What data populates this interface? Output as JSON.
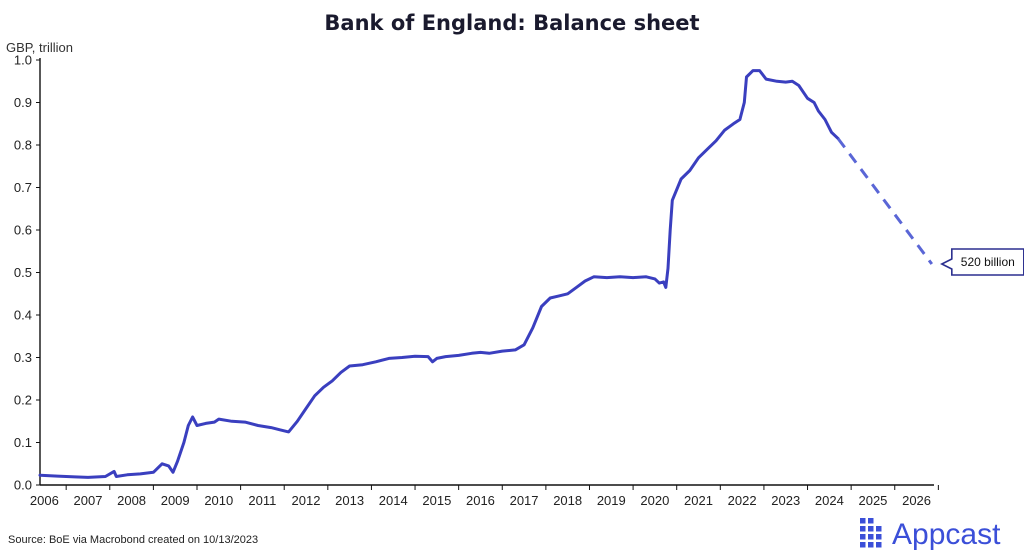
{
  "chart_data": {
    "type": "line",
    "title": "Bank of England: Balance sheet",
    "ylabel": "GBP, trillion",
    "xlabel": "",
    "xlim": [
      2005.9,
      2026.4
    ],
    "ylim": [
      0,
      1.0
    ],
    "yticks": [
      "0.0",
      "0.1",
      "0.2",
      "0.3",
      "0.4",
      "0.5",
      "0.6",
      "0.7",
      "0.8",
      "0.9",
      "1.0"
    ],
    "xticks": [
      "2006",
      "2007",
      "2008",
      "2009",
      "2010",
      "2011",
      "2012",
      "2013",
      "2014",
      "2015",
      "2016",
      "2017",
      "2018",
      "2019",
      "2020",
      "2021",
      "2022",
      "2023",
      "2024",
      "2025",
      "2026"
    ],
    "grid": false,
    "series": [
      {
        "style": "solid",
        "color": "#3a3fbf",
        "points": [
          [
            2005.9,
            0.023
          ],
          [
            2006.3,
            0.021
          ],
          [
            2006.7,
            0.019
          ],
          [
            2007.0,
            0.018
          ],
          [
            2007.4,
            0.02
          ],
          [
            2007.6,
            0.032
          ],
          [
            2007.65,
            0.02
          ],
          [
            2007.9,
            0.024
          ],
          [
            2008.2,
            0.026
          ],
          [
            2008.5,
            0.03
          ],
          [
            2008.7,
            0.05
          ],
          [
            2008.85,
            0.045
          ],
          [
            2008.95,
            0.03
          ],
          [
            2009.05,
            0.055
          ],
          [
            2009.2,
            0.1
          ],
          [
            2009.3,
            0.14
          ],
          [
            2009.4,
            0.16
          ],
          [
            2009.5,
            0.14
          ],
          [
            2009.7,
            0.145
          ],
          [
            2009.9,
            0.148
          ],
          [
            2010.0,
            0.155
          ],
          [
            2010.3,
            0.15
          ],
          [
            2010.6,
            0.148
          ],
          [
            2010.9,
            0.14
          ],
          [
            2011.2,
            0.135
          ],
          [
            2011.4,
            0.13
          ],
          [
            2011.6,
            0.125
          ],
          [
            2011.8,
            0.15
          ],
          [
            2012.0,
            0.18
          ],
          [
            2012.2,
            0.21
          ],
          [
            2012.4,
            0.23
          ],
          [
            2012.6,
            0.245
          ],
          [
            2012.8,
            0.265
          ],
          [
            2013.0,
            0.28
          ],
          [
            2013.3,
            0.283
          ],
          [
            2013.6,
            0.29
          ],
          [
            2013.9,
            0.298
          ],
          [
            2014.2,
            0.3
          ],
          [
            2014.5,
            0.303
          ],
          [
            2014.8,
            0.302
          ],
          [
            2014.9,
            0.29
          ],
          [
            2015.0,
            0.298
          ],
          [
            2015.2,
            0.302
          ],
          [
            2015.5,
            0.305
          ],
          [
            2015.8,
            0.31
          ],
          [
            2016.0,
            0.312
          ],
          [
            2016.2,
            0.31
          ],
          [
            2016.5,
            0.315
          ],
          [
            2016.8,
            0.318
          ],
          [
            2017.0,
            0.33
          ],
          [
            2017.2,
            0.37
          ],
          [
            2017.4,
            0.42
          ],
          [
            2017.6,
            0.44
          ],
          [
            2017.8,
            0.445
          ],
          [
            2018.0,
            0.45
          ],
          [
            2018.2,
            0.465
          ],
          [
            2018.4,
            0.48
          ],
          [
            2018.6,
            0.49
          ],
          [
            2018.9,
            0.488
          ],
          [
            2019.2,
            0.49
          ],
          [
            2019.5,
            0.488
          ],
          [
            2019.8,
            0.49
          ],
          [
            2020.0,
            0.485
          ],
          [
            2020.1,
            0.475
          ],
          [
            2020.2,
            0.478
          ],
          [
            2020.25,
            0.465
          ],
          [
            2020.3,
            0.51
          ],
          [
            2020.35,
            0.6
          ],
          [
            2020.4,
            0.67
          ],
          [
            2020.6,
            0.72
          ],
          [
            2020.8,
            0.74
          ],
          [
            2021.0,
            0.77
          ],
          [
            2021.2,
            0.79
          ],
          [
            2021.4,
            0.81
          ],
          [
            2021.6,
            0.835
          ],
          [
            2021.8,
            0.85
          ],
          [
            2021.95,
            0.86
          ],
          [
            2022.05,
            0.9
          ],
          [
            2022.1,
            0.96
          ],
          [
            2022.25,
            0.975
          ],
          [
            2022.4,
            0.975
          ],
          [
            2022.55,
            0.955
          ],
          [
            2022.8,
            0.95
          ],
          [
            2023.0,
            0.948
          ],
          [
            2023.15,
            0.95
          ],
          [
            2023.3,
            0.94
          ],
          [
            2023.5,
            0.91
          ],
          [
            2023.65,
            0.9
          ],
          [
            2023.75,
            0.88
          ],
          [
            2023.9,
            0.86
          ],
          [
            2024.05,
            0.83
          ],
          [
            2024.2,
            0.815
          ]
        ]
      },
      {
        "style": "dashed",
        "color": "#5a66d6",
        "points": [
          [
            2024.2,
            0.815
          ],
          [
            2026.35,
            0.52
          ]
        ]
      }
    ],
    "annotations": [
      {
        "text": "520 billion",
        "x": 2026.35,
        "y": 0.52
      }
    ],
    "source": "Source: BoE via Macrobond created on 10/13/2023"
  },
  "branding": {
    "logo_text": "Appcast",
    "logo_color": "#3b4fd8",
    "icon_name": "appcast-dots-icon"
  }
}
